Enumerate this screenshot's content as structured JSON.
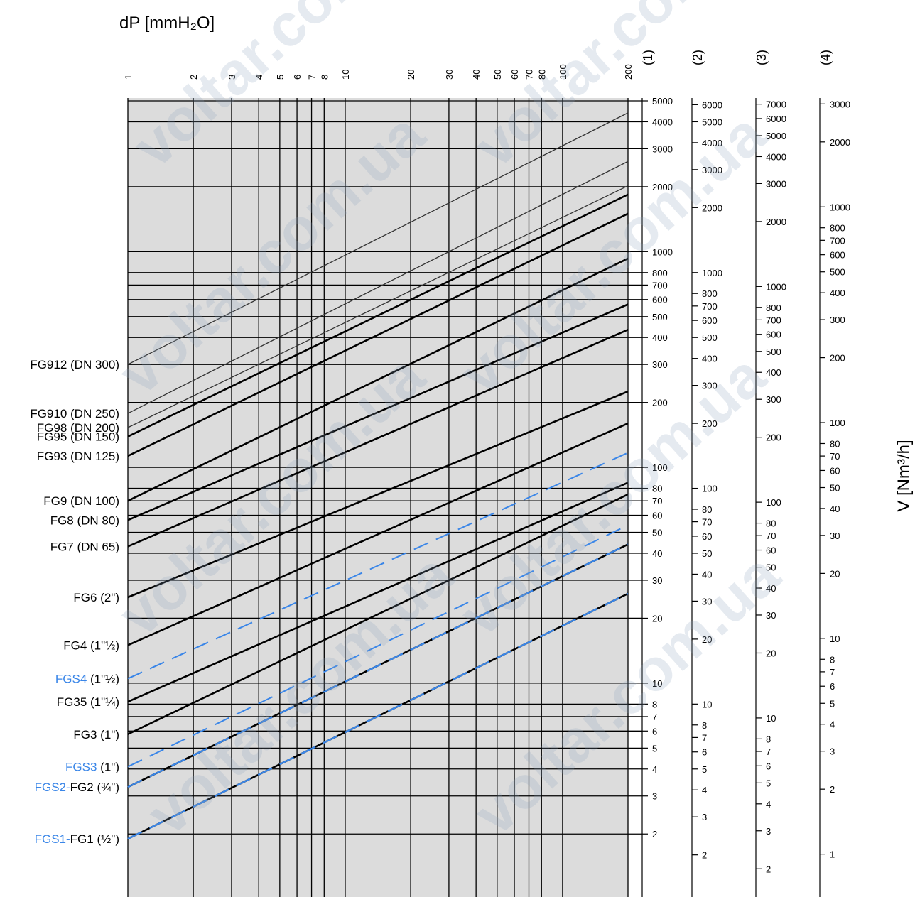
{
  "chart_data": {
    "type": "line",
    "title": "dP [mmH₂O]",
    "ylabel": "V [Nm³/h]",
    "x_ticks_top": [
      "1",
      "2",
      "3",
      "4",
      "5",
      "6",
      "7",
      "8",
      "10",
      "20",
      "30",
      "40",
      "50",
      "60",
      "70",
      "80",
      "100",
      "200"
    ],
    "xlim": [
      1,
      200
    ],
    "x_scale": "log",
    "ylim": [
      1.7,
      5000
    ],
    "y_scale": "log",
    "scale_headers": [
      "(1)",
      "(2)",
      "(3)",
      "(4)"
    ],
    "scales": [
      {
        "name": "(1)",
        "factor": 1.0,
        "ticks": [
          "5000",
          "4000",
          "3000",
          "2000",
          "1000",
          "800",
          "700",
          "600",
          "500",
          "400",
          "300",
          "200",
          "100",
          "80",
          "70",
          "60",
          "50",
          "40",
          "30",
          "20",
          "10",
          "8",
          "7",
          "6",
          "5",
          "4",
          "3",
          "2"
        ]
      },
      {
        "name": "(2)",
        "factor": 1.25,
        "ticks": [
          "6000",
          "5000",
          "4000",
          "3000",
          "2000",
          "1000",
          "800",
          "700",
          "600",
          "500",
          "400",
          "300",
          "200",
          "100",
          "80",
          "70",
          "60",
          "50",
          "40",
          "30",
          "20",
          "10",
          "8",
          "7",
          "6",
          "5",
          "4",
          "3",
          "2"
        ]
      },
      {
        "name": "(3)",
        "factor": 1.45,
        "ticks": [
          "7000",
          "6000",
          "5000",
          "4000",
          "3000",
          "2000",
          "1000",
          "800",
          "700",
          "600",
          "500",
          "400",
          "300",
          "200",
          "100",
          "80",
          "70",
          "60",
          "50",
          "40",
          "30",
          "20",
          "10",
          "8",
          "7",
          "6",
          "5",
          "4",
          "3",
          "2"
        ]
      },
      {
        "name": "(4)",
        "factor": 0.62,
        "ticks": [
          "3000",
          "2000",
          "1000",
          "800",
          "700",
          "600",
          "500",
          "400",
          "300",
          "200",
          "100",
          "80",
          "70",
          "60",
          "50",
          "40",
          "30",
          "20",
          "10",
          "8",
          "7",
          "6",
          "5",
          "4",
          "3",
          "2",
          "1"
        ]
      }
    ],
    "series": [
      {
        "name": "FG912 (DN 300)",
        "values": [
          {
            "x": 1,
            "y": 300
          },
          {
            "x": 200,
            "y": 4400
          }
        ],
        "dashed": false,
        "color": "#333333",
        "weight": "thin"
      },
      {
        "name": "FG910 (DN 250)",
        "values": [
          {
            "x": 1,
            "y": 178
          },
          {
            "x": 200,
            "y": 2620
          }
        ],
        "dashed": false,
        "color": "#333333",
        "weight": "thin"
      },
      {
        "name": "FG98 (DN 200)",
        "values": [
          {
            "x": 1,
            "y": 153
          },
          {
            "x": 200,
            "y": 2020
          }
        ],
        "dashed": false,
        "color": "#333333",
        "weight": "thin"
      },
      {
        "name": "FG95 (DN 150)",
        "values": [
          {
            "x": 1,
            "y": 139
          },
          {
            "x": 200,
            "y": 1840
          }
        ],
        "dashed": false,
        "color": "#000000",
        "weight": "thick"
      },
      {
        "name": "FG93 (DN 125)",
        "values": [
          {
            "x": 1,
            "y": 113
          },
          {
            "x": 200,
            "y": 1500
          }
        ],
        "dashed": false,
        "color": "#000000",
        "weight": "thick"
      },
      {
        "name": "FG9 (DN 100)",
        "values": [
          {
            "x": 1,
            "y": 70
          },
          {
            "x": 200,
            "y": 930
          }
        ],
        "dashed": false,
        "color": "#000000",
        "weight": "thick"
      },
      {
        "name": "FG8 (DN 80)",
        "values": [
          {
            "x": 1,
            "y": 57
          },
          {
            "x": 200,
            "y": 570
          }
        ],
        "dashed": false,
        "color": "#000000",
        "weight": "thick"
      },
      {
        "name": "FG7 (DN 65)",
        "values": [
          {
            "x": 1,
            "y": 43
          },
          {
            "x": 200,
            "y": 435
          }
        ],
        "dashed": false,
        "color": "#000000",
        "weight": "thick"
      },
      {
        "name": "FG6 (2\")",
        "values": [
          {
            "x": 1,
            "y": 25
          },
          {
            "x": 200,
            "y": 225
          }
        ],
        "dashed": false,
        "color": "#000000",
        "weight": "thick"
      },
      {
        "name": "FG4 (1\"½)",
        "values": [
          {
            "x": 1,
            "y": 15
          },
          {
            "x": 200,
            "y": 160
          }
        ],
        "dashed": false,
        "color": "#000000",
        "weight": "thick"
      },
      {
        "name": "FGS4 (1\"½)",
        "values": [
          {
            "x": 1,
            "y": 10.5
          },
          {
            "x": 200,
            "y": 117
          }
        ],
        "dashed": true,
        "color": "#3a86e8",
        "weight": "thick"
      },
      {
        "name": "FG35 (1\"¼)",
        "values": [
          {
            "x": 1,
            "y": 8.2
          },
          {
            "x": 200,
            "y": 85
          }
        ],
        "dashed": false,
        "color": "#000000",
        "weight": "thick"
      },
      {
        "name": "FG3 (1\")",
        "values": [
          {
            "x": 1,
            "y": 5.8
          },
          {
            "x": 200,
            "y": 75
          }
        ],
        "dashed": false,
        "color": "#000000",
        "weight": "thick"
      },
      {
        "name": "FGS3 (1\")",
        "values": [
          {
            "x": 1,
            "y": 4.1
          },
          {
            "x": 200,
            "y": 54
          }
        ],
        "dashed": true,
        "color": "#3a86e8",
        "weight": "thick"
      },
      {
        "name": "FGS2-FG2 (¾\")",
        "values": [
          {
            "x": 1,
            "y": 3.3
          },
          {
            "x": 200,
            "y": 44
          }
        ],
        "dashed": true,
        "color": "#3a86e8",
        "weight": "overlay"
      },
      {
        "name": "FGS1-FG1 (½\")",
        "values": [
          {
            "x": 1,
            "y": 1.9
          },
          {
            "x": 200,
            "y": 26
          }
        ],
        "dashed": true,
        "color": "#3a86e8",
        "weight": "overlay"
      }
    ],
    "curve_labels": [
      {
        "parts": [
          {
            "text": "FG912 (DN 300)",
            "color": "#000000"
          }
        ]
      },
      {
        "parts": [
          {
            "text": "FG910 (DN 250)",
            "color": "#000000"
          }
        ]
      },
      {
        "parts": [
          {
            "text": "FG98 (DN 200)",
            "color": "#000000"
          }
        ]
      },
      {
        "parts": [
          {
            "text": "FG95 (DN 150)",
            "color": "#000000"
          }
        ]
      },
      {
        "parts": [
          {
            "text": "FG93 (DN 125)",
            "color": "#000000"
          }
        ]
      },
      {
        "parts": [
          {
            "text": "FG9 (DN 100)",
            "color": "#000000"
          }
        ]
      },
      {
        "parts": [
          {
            "text": "FG8 (DN 80)",
            "color": "#000000"
          }
        ]
      },
      {
        "parts": [
          {
            "text": "FG7 (DN 65)",
            "color": "#000000"
          }
        ]
      },
      {
        "parts": [
          {
            "text": "FG6 (2\")",
            "color": "#000000"
          }
        ]
      },
      {
        "parts": [
          {
            "text": "FG4 (1\"½)",
            "color": "#000000"
          }
        ]
      },
      {
        "parts": [
          {
            "text": "FGS4",
            "color": "#3a86e8"
          },
          {
            "text": " (1\"½)",
            "color": "#000000"
          }
        ]
      },
      {
        "parts": [
          {
            "text": "FG35 (1\"¼)",
            "color": "#000000"
          }
        ]
      },
      {
        "parts": [
          {
            "text": "FG3 (1\")",
            "color": "#000000"
          }
        ]
      },
      {
        "parts": [
          {
            "text": "FGS3",
            "color": "#3a86e8"
          },
          {
            "text": " (1\")",
            "color": "#000000"
          }
        ]
      },
      {
        "parts": [
          {
            "text": "FGS2-",
            "color": "#3a86e8"
          },
          {
            "text": "FG2 (¾\")",
            "color": "#000000"
          }
        ]
      },
      {
        "parts": [
          {
            "text": "FGS1-",
            "color": "#3a86e8"
          },
          {
            "text": "FG1 (½\")",
            "color": "#000000"
          }
        ]
      }
    ],
    "watermark": "voltar.com.ua",
    "grid": true,
    "colors": {
      "plot_background": "#dcdcdc",
      "dashed_series": "#3a86e8",
      "lines": "#000000"
    }
  }
}
